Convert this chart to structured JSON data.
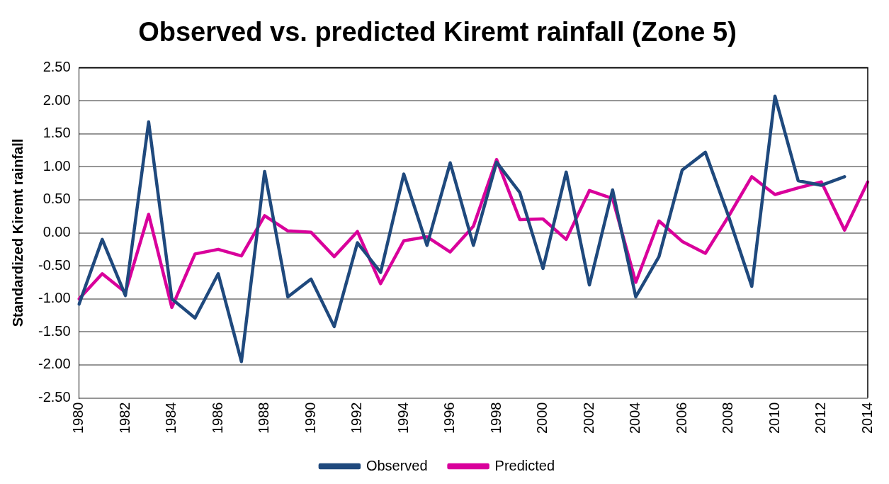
{
  "chart_data": {
    "type": "line",
    "title": "Observed vs. predicted Kiremt rainfall (Zone 5)",
    "ylabel": "Standardized Kiremt rainfall",
    "categories": [
      "1980",
      null,
      "1982",
      null,
      "1984",
      null,
      "1986",
      null,
      "1988",
      null,
      "1990",
      null,
      "1992",
      null,
      "1994",
      null,
      "1996",
      null,
      "1998",
      null,
      "2000",
      null,
      "2002",
      null,
      "2004",
      null,
      "2006",
      null,
      "2008",
      null,
      "2010",
      null,
      "2012",
      null,
      "2014"
    ],
    "series": [
      {
        "name": "Observed",
        "color": "#1f497d",
        "values": [
          -1.08,
          -0.1,
          -0.95,
          1.68,
          -1.0,
          -1.29,
          -0.62,
          -1.95,
          0.93,
          -0.97,
          -0.7,
          -1.42,
          -0.15,
          -0.6,
          0.89,
          -0.19,
          1.06,
          -0.19,
          1.07,
          0.61,
          -0.54,
          0.92,
          -0.79,
          0.65,
          -0.97,
          -0.36,
          0.95,
          1.22,
          0.25,
          -0.81,
          2.07,
          0.79,
          0.72,
          0.85,
          null
        ]
      },
      {
        "name": "Predicted",
        "color": "#d9009b",
        "values": [
          -1.0,
          -0.62,
          -0.9,
          0.28,
          -1.13,
          -0.32,
          -0.25,
          -0.35,
          0.26,
          0.03,
          0.01,
          -0.36,
          0.02,
          -0.77,
          -0.12,
          -0.06,
          -0.29,
          0.1,
          1.11,
          0.2,
          0.21,
          -0.1,
          0.64,
          0.52,
          -0.75,
          0.18,
          -0.13,
          -0.31,
          0.25,
          0.85,
          0.58,
          0.68,
          0.77,
          0.04,
          0.77
        ]
      }
    ],
    "ylim": [
      -2.5,
      2.5
    ],
    "yticks": [
      {
        "value": -2.5,
        "label": "-2.50"
      },
      {
        "value": -2,
        "label": "-2.00"
      },
      {
        "value": -1.5,
        "label": "-1.50"
      },
      {
        "value": -1,
        "label": "-1.00"
      },
      {
        "value": -0.5,
        "label": "-0.50"
      },
      {
        "value": 0,
        "label": "0.00"
      },
      {
        "value": 0.5,
        "label": "0.50"
      },
      {
        "value": 1,
        "label": "1.00"
      },
      {
        "value": 1.5,
        "label": "1.50"
      },
      {
        "value": 2,
        "label": "2.00"
      },
      {
        "value": 2.5,
        "label": "2.50"
      }
    ],
    "grid": "y",
    "legend": "bottom",
    "marker": "none",
    "line_style": "solid"
  }
}
